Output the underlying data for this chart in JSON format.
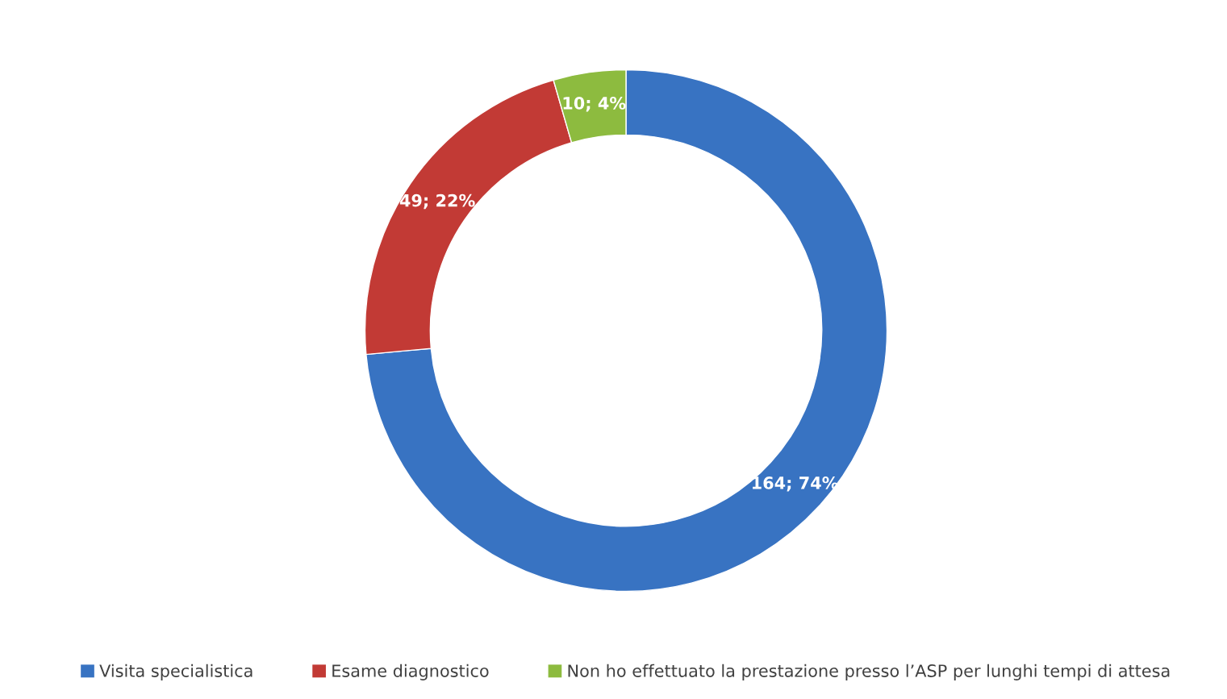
{
  "chart_data": {
    "type": "donut",
    "categories": [
      "Visita specialistica",
      "Esame diagnostico",
      "Non ho effettuato la prestazione presso l’ASP per lunghi tempi di attesa"
    ],
    "values": [
      164,
      49,
      10
    ],
    "colors": [
      "#3873c2",
      "#c23a35",
      "#8dbb3f"
    ],
    "value_labels": [
      "164; 74%",
      "49; 22%",
      "10; 4%"
    ],
    "legend": "bottom"
  }
}
